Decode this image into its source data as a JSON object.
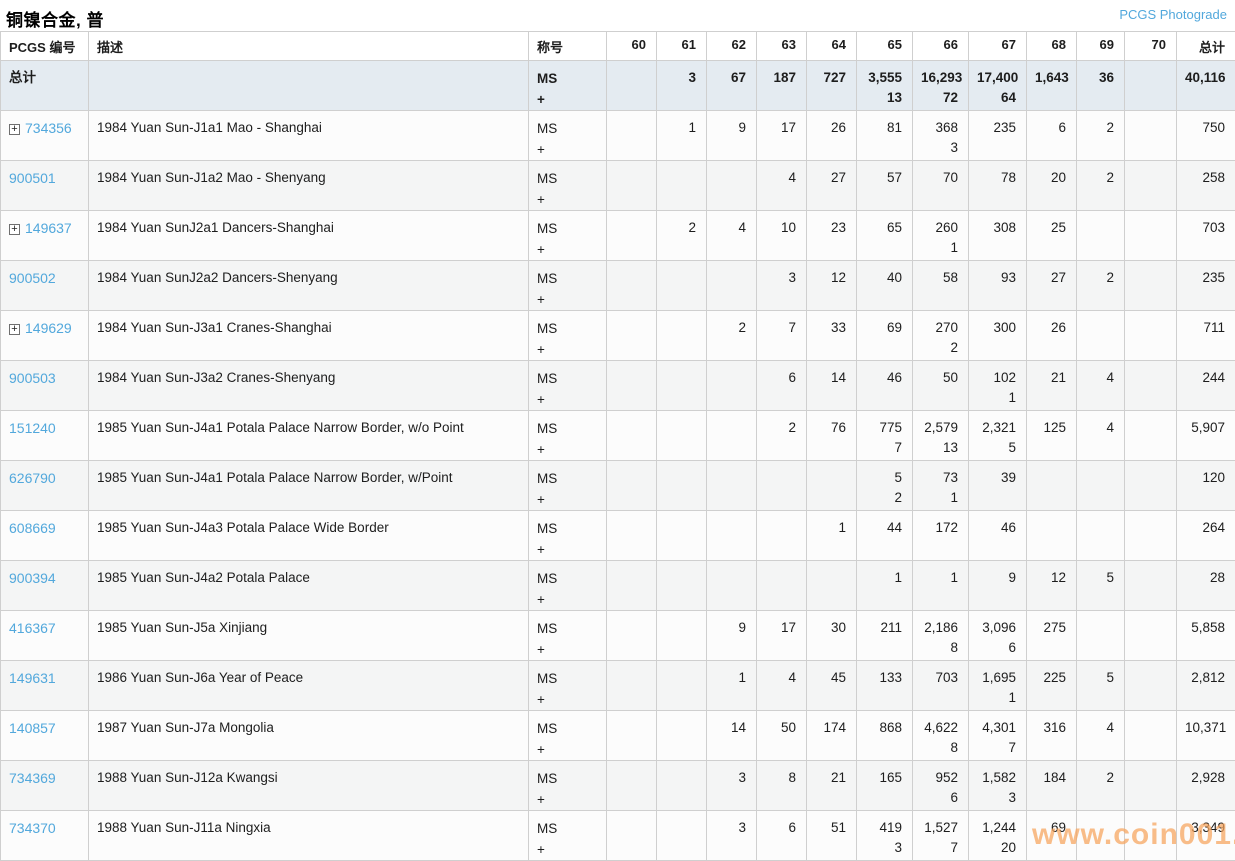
{
  "title": "铜镍合金, 普",
  "photograde_link": "PCGS Photograde",
  "watermark": "www.coin001.com",
  "icons": {
    "expand_glyph": "+"
  },
  "colors": {
    "link_blue": "#52a8dc",
    "total_row_bg": "#e4ebf1",
    "watermark_orange": "#f6a35c"
  },
  "table": {
    "headers": {
      "pcgs": "PCGS 编号",
      "desc": "描述",
      "designation": "称号",
      "total": "总计"
    },
    "grade_columns": [
      "60",
      "61",
      "62",
      "63",
      "64",
      "65",
      "66",
      "67",
      "68",
      "69",
      "70"
    ],
    "designation_lines": [
      "MS",
      "+"
    ],
    "total_row": {
      "label": "总计",
      "grades": [
        [
          "",
          ""
        ],
        [
          "3",
          ""
        ],
        [
          "67",
          ""
        ],
        [
          "187",
          ""
        ],
        [
          "727",
          ""
        ],
        [
          "3,555",
          "13"
        ],
        [
          "16,293",
          "72"
        ],
        [
          "17,400",
          "64"
        ],
        [
          "1,643",
          ""
        ],
        [
          "36",
          ""
        ],
        [
          "",
          ""
        ]
      ],
      "total": "40,116"
    },
    "rows": [
      {
        "pcgs": "734356",
        "expandable": true,
        "desc": "1984 Yuan Sun-J1a1 Mao - Shanghai",
        "grades": [
          [
            "",
            ""
          ],
          [
            "1",
            ""
          ],
          [
            "9",
            ""
          ],
          [
            "17",
            ""
          ],
          [
            "26",
            ""
          ],
          [
            "81",
            ""
          ],
          [
            "368",
            "3"
          ],
          [
            "235",
            ""
          ],
          [
            "6",
            ""
          ],
          [
            "2",
            ""
          ],
          [
            "",
            ""
          ]
        ],
        "total": "750"
      },
      {
        "pcgs": "900501",
        "expandable": false,
        "desc": "1984 Yuan Sun-J1a2 Mao - Shenyang",
        "grades": [
          [
            "",
            ""
          ],
          [
            "",
            ""
          ],
          [
            "",
            ""
          ],
          [
            "4",
            ""
          ],
          [
            "27",
            ""
          ],
          [
            "57",
            ""
          ],
          [
            "70",
            ""
          ],
          [
            "78",
            ""
          ],
          [
            "20",
            ""
          ],
          [
            "2",
            ""
          ],
          [
            "",
            ""
          ]
        ],
        "total": "258"
      },
      {
        "pcgs": "149637",
        "expandable": true,
        "desc": "1984 Yuan SunJ2a1 Dancers-Shanghai",
        "grades": [
          [
            "",
            ""
          ],
          [
            "2",
            ""
          ],
          [
            "4",
            ""
          ],
          [
            "10",
            ""
          ],
          [
            "23",
            ""
          ],
          [
            "65",
            ""
          ],
          [
            "260",
            "1"
          ],
          [
            "308",
            ""
          ],
          [
            "25",
            ""
          ],
          [
            "",
            ""
          ],
          [
            "",
            ""
          ]
        ],
        "total": "703"
      },
      {
        "pcgs": "900502",
        "expandable": false,
        "desc": "1984 Yuan SunJ2a2 Dancers-Shenyang",
        "grades": [
          [
            "",
            ""
          ],
          [
            "",
            ""
          ],
          [
            "",
            ""
          ],
          [
            "3",
            ""
          ],
          [
            "12",
            ""
          ],
          [
            "40",
            ""
          ],
          [
            "58",
            ""
          ],
          [
            "93",
            ""
          ],
          [
            "27",
            ""
          ],
          [
            "2",
            ""
          ],
          [
            "",
            ""
          ]
        ],
        "total": "235"
      },
      {
        "pcgs": "149629",
        "expandable": true,
        "desc": "1984 Yuan Sun-J3a1 Cranes-Shanghai",
        "grades": [
          [
            "",
            ""
          ],
          [
            "",
            ""
          ],
          [
            "2",
            ""
          ],
          [
            "7",
            ""
          ],
          [
            "33",
            ""
          ],
          [
            "69",
            ""
          ],
          [
            "270",
            "2"
          ],
          [
            "300",
            ""
          ],
          [
            "26",
            ""
          ],
          [
            "",
            ""
          ],
          [
            "",
            ""
          ]
        ],
        "total": "711"
      },
      {
        "pcgs": "900503",
        "expandable": false,
        "desc": "1984 Yuan Sun-J3a2 Cranes-Shenyang",
        "grades": [
          [
            "",
            ""
          ],
          [
            "",
            ""
          ],
          [
            "",
            ""
          ],
          [
            "6",
            ""
          ],
          [
            "14",
            ""
          ],
          [
            "46",
            ""
          ],
          [
            "50",
            ""
          ],
          [
            "102",
            "1"
          ],
          [
            "21",
            ""
          ],
          [
            "4",
            ""
          ],
          [
            "",
            ""
          ]
        ],
        "total": "244"
      },
      {
        "pcgs": "151240",
        "expandable": false,
        "desc": "1985 Yuan Sun-J4a1 Potala Palace Narrow Border, w/o Point",
        "grades": [
          [
            "",
            ""
          ],
          [
            "",
            ""
          ],
          [
            "",
            ""
          ],
          [
            "2",
            ""
          ],
          [
            "76",
            ""
          ],
          [
            "775",
            "7"
          ],
          [
            "2,579",
            "13"
          ],
          [
            "2,321",
            "5"
          ],
          [
            "125",
            ""
          ],
          [
            "4",
            ""
          ],
          [
            "",
            ""
          ]
        ],
        "total": "5,907"
      },
      {
        "pcgs": "626790",
        "expandable": false,
        "desc": "1985 Yuan Sun-J4a1 Potala Palace Narrow Border, w/Point",
        "grades": [
          [
            "",
            ""
          ],
          [
            "",
            ""
          ],
          [
            "",
            ""
          ],
          [
            "",
            ""
          ],
          [
            "",
            ""
          ],
          [
            "5",
            "2"
          ],
          [
            "73",
            "1"
          ],
          [
            "39",
            ""
          ],
          [
            "",
            ""
          ],
          [
            "",
            ""
          ],
          [
            "",
            ""
          ]
        ],
        "total": "120"
      },
      {
        "pcgs": "608669",
        "expandable": false,
        "desc": "1985 Yuan Sun-J4a3 Potala Palace Wide Border",
        "grades": [
          [
            "",
            ""
          ],
          [
            "",
            ""
          ],
          [
            "",
            ""
          ],
          [
            "",
            ""
          ],
          [
            "1",
            ""
          ],
          [
            "44",
            ""
          ],
          [
            "172",
            ""
          ],
          [
            "46",
            ""
          ],
          [
            "",
            ""
          ],
          [
            "",
            ""
          ],
          [
            "",
            ""
          ]
        ],
        "total": "264"
      },
      {
        "pcgs": "900394",
        "expandable": false,
        "desc": "1985 Yuan Sun-J4a2 Potala Palace",
        "grades": [
          [
            "",
            ""
          ],
          [
            "",
            ""
          ],
          [
            "",
            ""
          ],
          [
            "",
            ""
          ],
          [
            "",
            ""
          ],
          [
            "1",
            ""
          ],
          [
            "1",
            ""
          ],
          [
            "9",
            ""
          ],
          [
            "12",
            ""
          ],
          [
            "5",
            ""
          ],
          [
            "",
            ""
          ]
        ],
        "total": "28"
      },
      {
        "pcgs": "416367",
        "expandable": false,
        "desc": "1985 Yuan Sun-J5a Xinjiang",
        "grades": [
          [
            "",
            ""
          ],
          [
            "",
            ""
          ],
          [
            "9",
            ""
          ],
          [
            "17",
            ""
          ],
          [
            "30",
            ""
          ],
          [
            "211",
            ""
          ],
          [
            "2,186",
            "8"
          ],
          [
            "3,096",
            "6"
          ],
          [
            "275",
            ""
          ],
          [
            "",
            ""
          ],
          [
            "",
            ""
          ]
        ],
        "total": "5,858"
      },
      {
        "pcgs": "149631",
        "expandable": false,
        "desc": "1986 Yuan Sun-J6a Year of Peace",
        "grades": [
          [
            "",
            ""
          ],
          [
            "",
            ""
          ],
          [
            "1",
            ""
          ],
          [
            "4",
            ""
          ],
          [
            "45",
            ""
          ],
          [
            "133",
            ""
          ],
          [
            "703",
            ""
          ],
          [
            "1,695",
            "1"
          ],
          [
            "225",
            ""
          ],
          [
            "5",
            ""
          ],
          [
            "",
            ""
          ]
        ],
        "total": "2,812"
      },
      {
        "pcgs": "140857",
        "expandable": false,
        "desc": "1987 Yuan Sun-J7a Mongolia",
        "grades": [
          [
            "",
            ""
          ],
          [
            "",
            ""
          ],
          [
            "14",
            ""
          ],
          [
            "50",
            ""
          ],
          [
            "174",
            ""
          ],
          [
            "868",
            ""
          ],
          [
            "4,622",
            "8"
          ],
          [
            "4,301",
            "7"
          ],
          [
            "316",
            ""
          ],
          [
            "4",
            ""
          ],
          [
            "",
            ""
          ]
        ],
        "total": "10,371"
      },
      {
        "pcgs": "734369",
        "expandable": false,
        "desc": "1988 Yuan Sun-J12a Kwangsi",
        "grades": [
          [
            "",
            ""
          ],
          [
            "",
            ""
          ],
          [
            "3",
            ""
          ],
          [
            "8",
            ""
          ],
          [
            "21",
            ""
          ],
          [
            "165",
            ""
          ],
          [
            "952",
            "6"
          ],
          [
            "1,582",
            "3"
          ],
          [
            "184",
            ""
          ],
          [
            "2",
            ""
          ],
          [
            "",
            ""
          ]
        ],
        "total": "2,928"
      },
      {
        "pcgs": "734370",
        "expandable": false,
        "desc": "1988 Yuan Sun-J11a Ningxia",
        "grades": [
          [
            "",
            ""
          ],
          [
            "",
            ""
          ],
          [
            "3",
            ""
          ],
          [
            "6",
            ""
          ],
          [
            "51",
            ""
          ],
          [
            "419",
            "3"
          ],
          [
            "1,527",
            "7"
          ],
          [
            "1,244",
            "20"
          ],
          [
            "69",
            ""
          ],
          [
            "",
            ""
          ],
          [
            "",
            ""
          ]
        ],
        "total": "3,349"
      }
    ]
  }
}
